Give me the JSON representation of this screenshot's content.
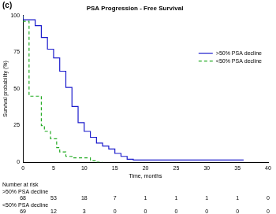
{
  "chart_data": {
    "type": "line",
    "panel_label": "(c)",
    "title": "PSA Progression - Free Survival",
    "x_label": "Time, months",
    "y_label": "Survival probability (%)",
    "xlim": [
      0,
      40
    ],
    "xticks": [
      0,
      5,
      10,
      15,
      20,
      25,
      30,
      35,
      40
    ],
    "ylim": [
      0,
      100
    ],
    "yticks": [
      0,
      25,
      50,
      75,
      100
    ],
    "grid": false,
    "legend": "upper right",
    "series": [
      {
        "name": ">50% PSA decline",
        "color": "#1a1acc",
        "line_style": "solid",
        "x": [
          0,
          2,
          3,
          4,
          5,
          6,
          7,
          8,
          9,
          10,
          11,
          12,
          13,
          14,
          15,
          16,
          17,
          18,
          19,
          36
        ],
        "values": [
          100,
          97,
          93,
          85,
          77,
          71,
          62,
          51,
          38,
          27,
          21,
          17,
          13,
          11,
          9,
          6,
          4,
          2,
          1.5,
          1.5
        ]
      },
      {
        "name": "<50% PSA decline",
        "color": "#22aa22",
        "line_style": "dashed",
        "x": [
          0,
          1,
          3,
          3.5,
          4.5,
          5.5,
          6,
          7,
          8,
          11,
          12,
          13
        ],
        "values": [
          100,
          96,
          45,
          25,
          21,
          16,
          10,
          7,
          4,
          3,
          1,
          0
        ]
      }
    ],
    "risk_table": {
      "title": "Number at risk",
      "times": [
        0,
        5,
        10,
        15,
        20,
        25,
        30,
        35,
        40
      ],
      "rows": [
        {
          "name": ">50% PSA decline",
          "values": [
            68,
            53,
            18,
            7,
            1,
            1,
            1,
            1,
            0
          ]
        },
        {
          "name": "<50% PSA decline",
          "values": [
            69,
            12,
            3,
            0,
            0,
            0,
            0,
            0,
            0
          ]
        }
      ]
    }
  }
}
